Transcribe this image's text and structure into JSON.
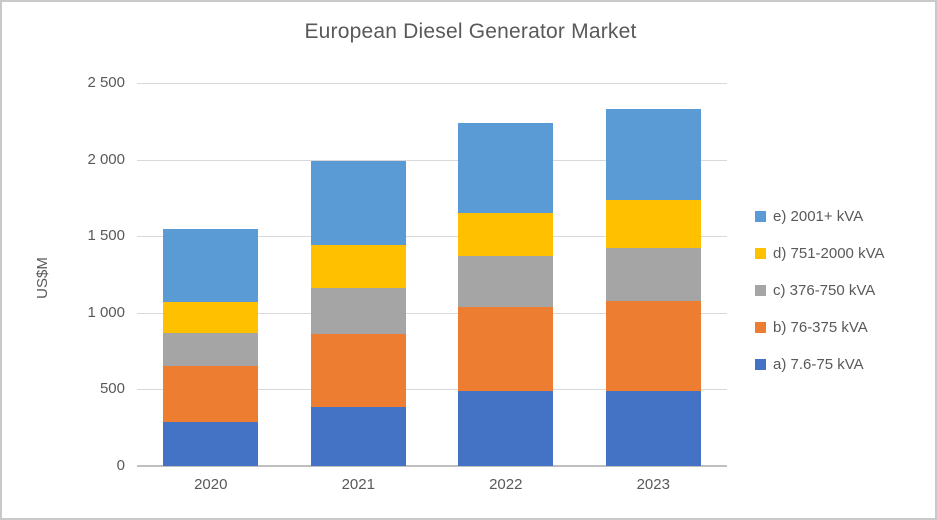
{
  "chart_data": {
    "type": "bar",
    "stacked": true,
    "title": "European Diesel Generator Market",
    "ylabel": "US$M",
    "categories": [
      "2020",
      "2021",
      "2022",
      "2023"
    ],
    "series": [
      {
        "name": "a) 7.6-75 kVA",
        "color": "#4472C4",
        "values": [
          285,
          385,
          490,
          490
        ]
      },
      {
        "name": "b) 76-375 kVA",
        "color": "#ED7D31",
        "values": [
          365,
          480,
          550,
          590
        ]
      },
      {
        "name": "c) 376-750 kVA",
        "color": "#A5A5A5",
        "values": [
          220,
          300,
          330,
          340
        ]
      },
      {
        "name": "d) 751-2000 kVA",
        "color": "#FFC000",
        "values": [
          200,
          275,
          280,
          315
        ]
      },
      {
        "name": "e) 2001+ kVA",
        "color": "#5B9BD5",
        "values": [
          480,
          550,
          590,
          595
        ]
      }
    ],
    "totals": [
      1550,
      1990,
      2240,
      2330
    ],
    "ylim": [
      0,
      2500
    ],
    "yticks": [
      {
        "value": 0,
        "label": "0"
      },
      {
        "value": 500,
        "label": "500"
      },
      {
        "value": 1000,
        "label": "1 000"
      },
      {
        "value": 1500,
        "label": "1 500"
      },
      {
        "value": 2000,
        "label": "2 000"
      },
      {
        "value": 2500,
        "label": "2 500"
      }
    ],
    "grid": true,
    "legend_position": "right",
    "legend_order_top_to_bottom": [
      "e) 2001+ kVA",
      "d) 751-2000 kVA",
      "c) 376-750 kVA",
      "b) 76-375 kVA",
      "a) 7.6-75 kVA"
    ],
    "colors": {
      "text": "#595959",
      "gridline": "#D9D9D9",
      "axis_line": "#BFBFBF",
      "frame_border": "#C9C9C9"
    }
  }
}
